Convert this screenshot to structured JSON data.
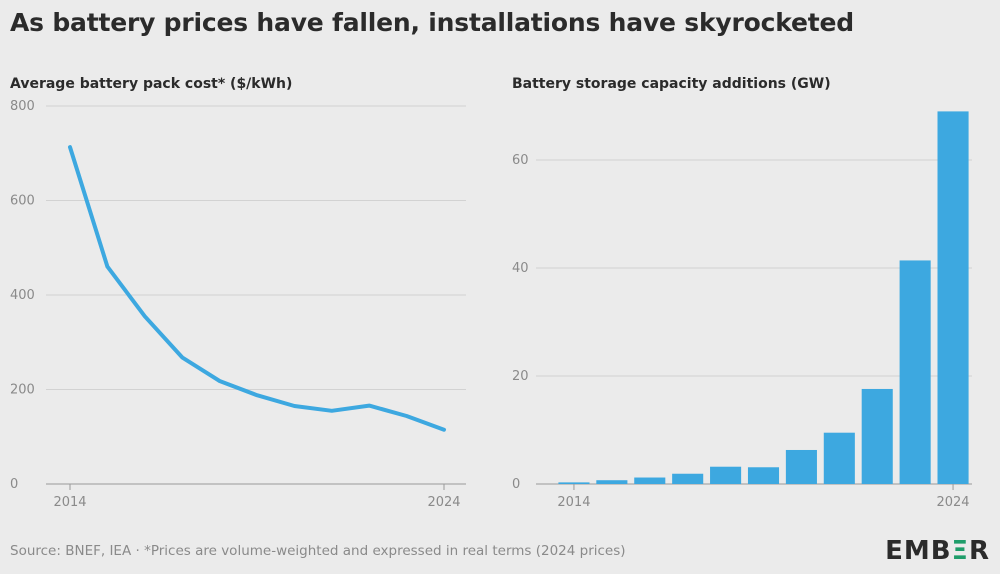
{
  "title": "As battery prices have fallen, installations have skyrocketed",
  "source": "Source: BNEF, IEA · *Prices are volume-weighted and expressed in real terms (2024 prices)",
  "logo": {
    "text": "EMBER",
    "brand_color": "#2b2b2b",
    "accent_color": "#1f9d6a"
  },
  "colors": {
    "series": "#3da8e0",
    "background": "#ebebeb",
    "grid": "#d2d2d2",
    "tick": "#8a8a8a"
  },
  "chart_data": [
    {
      "type": "line",
      "title": "Average battery pack cost* ($/kWh)",
      "x": [
        2014,
        2015,
        2016,
        2017,
        2018,
        2019,
        2020,
        2021,
        2022,
        2023,
        2024
      ],
      "values": [
        713,
        460,
        355,
        268,
        218,
        188,
        165,
        155,
        166,
        144,
        115
      ],
      "xticks": [
        "2014",
        "2024"
      ],
      "yticks": [
        "0",
        "200",
        "400",
        "600",
        "800"
      ],
      "ylim": [
        0,
        800
      ],
      "grid": true
    },
    {
      "type": "bar",
      "title": "Battery storage capacity additions (GW)",
      "categories": [
        2014,
        2015,
        2016,
        2017,
        2018,
        2019,
        2020,
        2021,
        2022,
        2023,
        2024
      ],
      "values": [
        0.3,
        0.7,
        1.2,
        1.9,
        3.2,
        3.1,
        6.3,
        9.5,
        17.6,
        41.4,
        69.0
      ],
      "xticks": [
        "2014",
        "2024"
      ],
      "yticks": [
        "0",
        "20",
        "40",
        "60"
      ],
      "ylim": [
        0,
        70
      ],
      "grid": true
    }
  ]
}
